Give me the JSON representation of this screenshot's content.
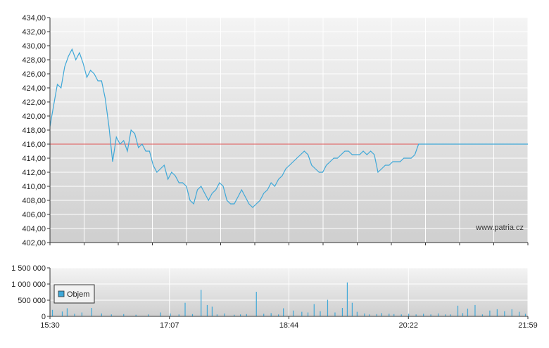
{
  "chart_data": [
    {
      "type": "line",
      "title": "",
      "xlabel": "",
      "ylabel": "",
      "ylim": [
        402,
        434
      ],
      "y_ticks": [
        "434,00",
        "432,00",
        "430,00",
        "428,00",
        "426,00",
        "424,00",
        "422,00",
        "420,00",
        "418,00",
        "416,00",
        "414,00",
        "412,00",
        "410,00",
        "408,00",
        "406,00",
        "404,00",
        "402,00"
      ],
      "x_ticks": [
        "15:30",
        "17:07",
        "18:44",
        "20:22",
        "21:59"
      ],
      "x_range_minutes": [
        930,
        1319
      ],
      "grid": true,
      "line_color": "#3fa8d8",
      "reference_line": {
        "value": 416,
        "color": "#e05555"
      },
      "series": [
        {
          "x": [
            930,
            933,
            936,
            939,
            942,
            945,
            948,
            951,
            954,
            957,
            960,
            963,
            966,
            969,
            972,
            975,
            978,
            981,
            984,
            987,
            990,
            993,
            996,
            999,
            1002,
            1005,
            1008,
            1011,
            1014,
            1017,
            1020,
            1023,
            1026,
            1029,
            1032,
            1035,
            1038,
            1041,
            1044,
            1047,
            1050,
            1053,
            1056,
            1059,
            1062,
            1065,
            1068,
            1071,
            1074,
            1077,
            1080,
            1083,
            1086,
            1089,
            1092,
            1095,
            1098,
            1101,
            1104,
            1107,
            1110,
            1113,
            1116,
            1119,
            1122,
            1125,
            1128,
            1131,
            1134,
            1137,
            1140,
            1143,
            1146,
            1149,
            1152,
            1155,
            1158,
            1161,
            1164,
            1167,
            1170,
            1173,
            1176,
            1179,
            1182,
            1185,
            1188,
            1191,
            1194,
            1197,
            1200,
            1203,
            1206,
            1209,
            1212,
            1215,
            1218,
            1221,
            1224,
            1227,
            1230,
            1233,
            1236,
            1239,
            1242,
            1245,
            1248,
            1251,
            1254,
            1257,
            1260,
            1263,
            1266,
            1269,
            1272,
            1275,
            1278,
            1281,
            1284,
            1287,
            1290,
            1293,
            1296,
            1299,
            1302,
            1305,
            1308,
            1311,
            1314,
            1317,
            1319
          ],
          "values": [
            418.5,
            421.5,
            424.5,
            424.0,
            427.0,
            428.5,
            429.5,
            428.0,
            429.0,
            427.5,
            425.5,
            426.5,
            426.0,
            425.0,
            425.0,
            422.5,
            418.5,
            413.5,
            417.0,
            416.0,
            416.5,
            415.0,
            418.0,
            417.5,
            415.5,
            416.0,
            415.0,
            415.0,
            413.0,
            412.0,
            412.5,
            413.0,
            411.0,
            412.0,
            411.5,
            410.5,
            410.5,
            410.0,
            408.0,
            407.5,
            409.5,
            410.0,
            409.0,
            408.0,
            409.0,
            409.5,
            410.5,
            410.0,
            408.0,
            407.5,
            407.5,
            408.5,
            409.5,
            408.5,
            407.5,
            407.0,
            407.5,
            408.0,
            409.0,
            409.5,
            410.5,
            410.0,
            411.0,
            411.5,
            412.5,
            413.0,
            413.5,
            414.0,
            414.5,
            415.0,
            414.5,
            413.0,
            412.5,
            412.0,
            412.0,
            413.0,
            413.5,
            414.0,
            414.0,
            414.5,
            415.0,
            415.0,
            414.5,
            414.5,
            414.5,
            415.0,
            414.5,
            415.0,
            414.5,
            412.0,
            412.5,
            413.0,
            413.0,
            413.5,
            413.5,
            413.5,
            414.0,
            414.0,
            414.0,
            414.5,
            416.0,
            416.0,
            416.0,
            416.0,
            416.0,
            416.0,
            416.0,
            416.0,
            416.0,
            416.0,
            416.0,
            416.0,
            416.0,
            416.0,
            416.0,
            416.0,
            416.0,
            416.0,
            416.0,
            416.0,
            416.0,
            416.0,
            416.0,
            416.0,
            416.0,
            416.0,
            416.0,
            416.0,
            416.0,
            416.0,
            416.0
          ]
        }
      ]
    },
    {
      "type": "bar",
      "title": "",
      "xlabel": "",
      "ylabel": "",
      "ylim": [
        0,
        1500000
      ],
      "y_ticks": [
        "1 500 000",
        "1 000 000",
        "500 000",
        "0"
      ],
      "x_ticks": [
        "15:30",
        "17:07",
        "18:44",
        "20:22",
        "21:59"
      ],
      "x_range_minutes": [
        930,
        1319
      ],
      "grid": true,
      "legend": {
        "position": "top-left",
        "entries": [
          "Objem"
        ]
      },
      "bar_color": "#3fa8d8",
      "series": [
        {
          "name": "Objem",
          "x": [
            932,
            940,
            944,
            950,
            956,
            964,
            972,
            980,
            990,
            1000,
            1010,
            1020,
            1028,
            1035,
            1040,
            1046,
            1053,
            1058,
            1062,
            1066,
            1072,
            1080,
            1085,
            1090,
            1098,
            1104,
            1110,
            1116,
            1120,
            1128,
            1135,
            1140,
            1145,
            1150,
            1156,
            1162,
            1168,
            1172,
            1176,
            1180,
            1186,
            1190,
            1196,
            1200,
            1206,
            1210,
            1216,
            1222,
            1228,
            1234,
            1240,
            1246,
            1252,
            1256,
            1262,
            1266,
            1270,
            1276,
            1282,
            1288,
            1294,
            1300,
            1306,
            1312,
            1317
          ],
          "values": [
            200000,
            150000,
            250000,
            80000,
            120000,
            260000,
            90000,
            60000,
            70000,
            50000,
            60000,
            120000,
            90000,
            60000,
            420000,
            70000,
            820000,
            350000,
            300000,
            60000,
            90000,
            50000,
            60000,
            70000,
            760000,
            80000,
            100000,
            60000,
            250000,
            180000,
            140000,
            120000,
            380000,
            160000,
            510000,
            120000,
            260000,
            1050000,
            420000,
            140000,
            90000,
            60000,
            70000,
            100000,
            80000,
            70000,
            60000,
            80000,
            60000,
            80000,
            60000,
            90000,
            60000,
            60000,
            330000,
            100000,
            240000,
            350000,
            60000,
            180000,
            220000,
            160000,
            220000,
            140000,
            80000
          ]
        }
      ]
    }
  ],
  "watermark": "www.patria.cz"
}
